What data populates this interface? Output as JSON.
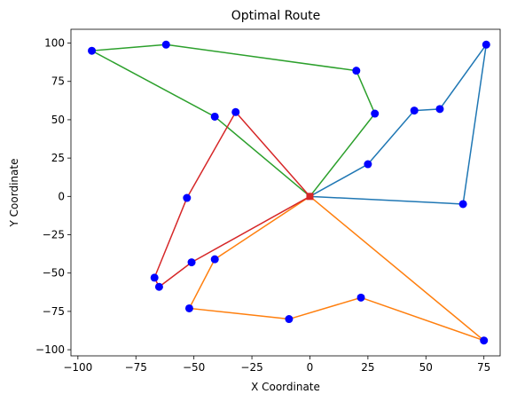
{
  "chart_data": {
    "type": "line",
    "title": "Optimal Route",
    "xlabel": "X Coordinate",
    "ylabel": "Y Coordinate",
    "xlim": [
      -103,
      82
    ],
    "ylim": [
      -104,
      109
    ],
    "xticks": [
      -100,
      -75,
      -50,
      -25,
      0,
      25,
      50,
      75
    ],
    "yticks": [
      -100,
      -75,
      -50,
      -25,
      0,
      25,
      50,
      75,
      100
    ],
    "grid": false,
    "depot": {
      "x": 0,
      "y": 0,
      "color": "#d62728"
    },
    "point_color": "#0000ff",
    "series": [
      {
        "color": "#1f77b4",
        "x": [
          0,
          25,
          45,
          56,
          76,
          66,
          0
        ],
        "y": [
          0,
          21,
          56,
          57,
          99,
          -5,
          0
        ]
      },
      {
        "color": "#ff7f0e",
        "x": [
          0,
          75,
          22,
          -9,
          -52,
          -41,
          0
        ],
        "y": [
          0,
          -94,
          -66,
          -80,
          -73,
          -41,
          0
        ]
      },
      {
        "color": "#2ca02c",
        "x": [
          0,
          28,
          20,
          -62,
          -94,
          -41,
          0
        ],
        "y": [
          0,
          54,
          82,
          99,
          95,
          52,
          0
        ]
      },
      {
        "color": "#d62728",
        "x": [
          0,
          -51,
          -65,
          -67,
          -53,
          -32,
          0
        ],
        "y": [
          0,
          -43,
          -59,
          -53,
          -1,
          55,
          0
        ]
      }
    ]
  }
}
